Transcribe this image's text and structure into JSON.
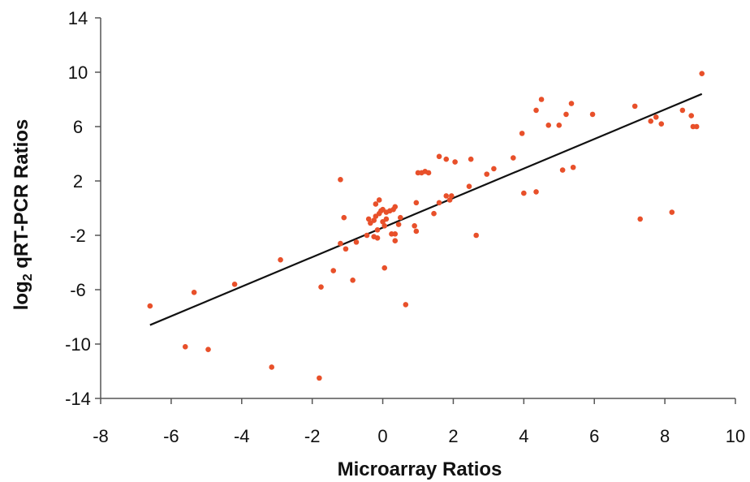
{
  "chart_data": {
    "type": "scatter",
    "title": "",
    "xlabel": "Microarray Ratios",
    "ylabel_main": "log",
    "ylabel_sub": "2",
    "ylabel_rest": " qRT-PCR Ratios",
    "xlim": [
      -8,
      10
    ],
    "ylim": [
      -14,
      14
    ],
    "xticks": [
      -8,
      -6,
      -4,
      -2,
      0,
      2,
      4,
      6,
      8,
      10
    ],
    "yticks": [
      -14,
      -10,
      -6,
      -2,
      2,
      6,
      10,
      14
    ],
    "xtick_labels": [
      "-8",
      "-6",
      "-4",
      "-2",
      "0",
      "2",
      "4",
      "6",
      "8",
      "10"
    ],
    "ytick_labels": [
      "-14",
      "-10",
      "-6",
      "-2",
      "2",
      "6",
      "10",
      "14"
    ],
    "grid": false,
    "legend": "none",
    "point_color": "#e8502a",
    "trendline_color": "#111111",
    "trendline": {
      "x": [
        -6.6,
        9.05
      ],
      "y": [
        -8.6,
        8.4
      ]
    },
    "points": [
      [
        -6.6,
        -7.2
      ],
      [
        -5.6,
        -10.2
      ],
      [
        -5.35,
        -6.2
      ],
      [
        -4.95,
        -10.4
      ],
      [
        -4.2,
        -5.6
      ],
      [
        -3.15,
        -11.7
      ],
      [
        -2.9,
        -3.8
      ],
      [
        -1.8,
        -12.5
      ],
      [
        -1.75,
        -5.8
      ],
      [
        -1.4,
        -4.6
      ],
      [
        -1.2,
        -2.6
      ],
      [
        -1.2,
        2.1
      ],
      [
        -1.1,
        -0.7
      ],
      [
        -1.05,
        -3.0
      ],
      [
        -0.85,
        -5.3
      ],
      [
        -0.75,
        -2.5
      ],
      [
        -0.45,
        -2.0
      ],
      [
        -0.4,
        -0.8
      ],
      [
        -0.35,
        -1.1
      ],
      [
        -0.25,
        -0.9
      ],
      [
        -0.25,
        -2.1
      ],
      [
        -0.2,
        -0.6
      ],
      [
        -0.2,
        0.3
      ],
      [
        -0.15,
        -1.6
      ],
      [
        -0.15,
        -2.2
      ],
      [
        -0.1,
        0.6
      ],
      [
        -0.1,
        -0.4
      ],
      [
        -0.05,
        -0.2
      ],
      [
        0.0,
        -1.0
      ],
      [
        0.0,
        -0.1
      ],
      [
        0.05,
        -1.3
      ],
      [
        0.05,
        -4.4
      ],
      [
        0.1,
        -0.8
      ],
      [
        0.1,
        -0.3
      ],
      [
        0.2,
        -0.2
      ],
      [
        0.25,
        -1.9
      ],
      [
        0.3,
        -0.1
      ],
      [
        0.35,
        -2.4
      ],
      [
        0.35,
        0.1
      ],
      [
        0.35,
        -1.9
      ],
      [
        0.45,
        -1.2
      ],
      [
        0.5,
        -0.7
      ],
      [
        0.65,
        -7.1
      ],
      [
        0.9,
        -1.3
      ],
      [
        0.95,
        -1.7
      ],
      [
        0.95,
        0.4
      ],
      [
        1.0,
        2.6
      ],
      [
        1.1,
        2.6
      ],
      [
        1.2,
        2.7
      ],
      [
        1.3,
        2.6
      ],
      [
        1.45,
        -0.4
      ],
      [
        1.6,
        0.4
      ],
      [
        1.6,
        3.8
      ],
      [
        1.8,
        3.6
      ],
      [
        1.8,
        0.9
      ],
      [
        1.9,
        0.6
      ],
      [
        1.95,
        0.9
      ],
      [
        2.05,
        3.4
      ],
      [
        2.45,
        1.6
      ],
      [
        2.5,
        3.6
      ],
      [
        2.65,
        -2.0
      ],
      [
        2.95,
        2.5
      ],
      [
        3.15,
        2.9
      ],
      [
        3.7,
        3.7
      ],
      [
        3.95,
        5.5
      ],
      [
        4.0,
        1.1
      ],
      [
        4.35,
        1.2
      ],
      [
        4.35,
        7.2
      ],
      [
        4.5,
        8.0
      ],
      [
        4.7,
        6.1
      ],
      [
        5.0,
        6.1
      ],
      [
        5.1,
        2.8
      ],
      [
        5.2,
        6.9
      ],
      [
        5.35,
        7.7
      ],
      [
        5.4,
        3.0
      ],
      [
        5.95,
        6.9
      ],
      [
        7.15,
        7.5
      ],
      [
        7.3,
        -0.8
      ],
      [
        7.6,
        6.4
      ],
      [
        7.75,
        6.7
      ],
      [
        7.9,
        6.2
      ],
      [
        8.2,
        -0.3
      ],
      [
        8.5,
        7.2
      ],
      [
        8.75,
        6.8
      ],
      [
        8.8,
        6.0
      ],
      [
        8.9,
        6.0
      ],
      [
        9.05,
        9.9
      ]
    ]
  }
}
